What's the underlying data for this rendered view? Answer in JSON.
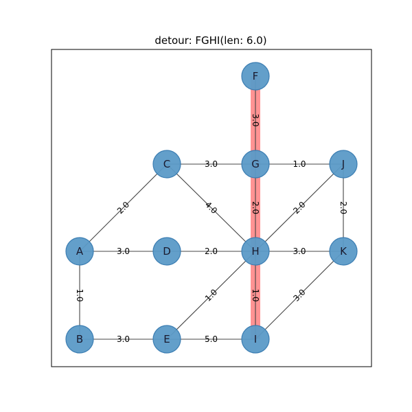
{
  "title": "detour: FGHI(len: 6.0)",
  "colors": {
    "node_fill": "#5b9ac7",
    "node_stroke": "#3b7db2",
    "highlight": "#ff6f6f",
    "edge": "#444444",
    "frame": "#000000"
  },
  "nodes": [
    {
      "id": "A",
      "label": "A"
    },
    {
      "id": "B",
      "label": "B"
    },
    {
      "id": "C",
      "label": "C"
    },
    {
      "id": "D",
      "label": "D"
    },
    {
      "id": "E",
      "label": "E"
    },
    {
      "id": "F",
      "label": "F"
    },
    {
      "id": "G",
      "label": "G"
    },
    {
      "id": "H",
      "label": "H"
    },
    {
      "id": "I",
      "label": "I"
    },
    {
      "id": "J",
      "label": "J"
    },
    {
      "id": "K",
      "label": "K"
    }
  ],
  "edges": [
    {
      "from": "A",
      "to": "C",
      "label": "2.0"
    },
    {
      "from": "A",
      "to": "D",
      "label": "3.0"
    },
    {
      "from": "A",
      "to": "B",
      "label": "1.0"
    },
    {
      "from": "B",
      "to": "E",
      "label": "3.0"
    },
    {
      "from": "C",
      "to": "G",
      "label": "3.0"
    },
    {
      "from": "C",
      "to": "H",
      "label": "4.0"
    },
    {
      "from": "D",
      "to": "H",
      "label": "2.0"
    },
    {
      "from": "E",
      "to": "H",
      "label": "1.0"
    },
    {
      "from": "E",
      "to": "I",
      "label": "5.0"
    },
    {
      "from": "F",
      "to": "G",
      "label": "3.0"
    },
    {
      "from": "G",
      "to": "J",
      "label": "1.0"
    },
    {
      "from": "G",
      "to": "H",
      "label": "2.0"
    },
    {
      "from": "H",
      "to": "J",
      "label": "2.0"
    },
    {
      "from": "H",
      "to": "K",
      "label": "3.0"
    },
    {
      "from": "H",
      "to": "I",
      "label": "1.0"
    },
    {
      "from": "J",
      "to": "K",
      "label": "2.0"
    },
    {
      "from": "I",
      "to": "K",
      "label": "3.0"
    }
  ],
  "highlight_path": [
    "F",
    "G",
    "H",
    "I"
  ]
}
